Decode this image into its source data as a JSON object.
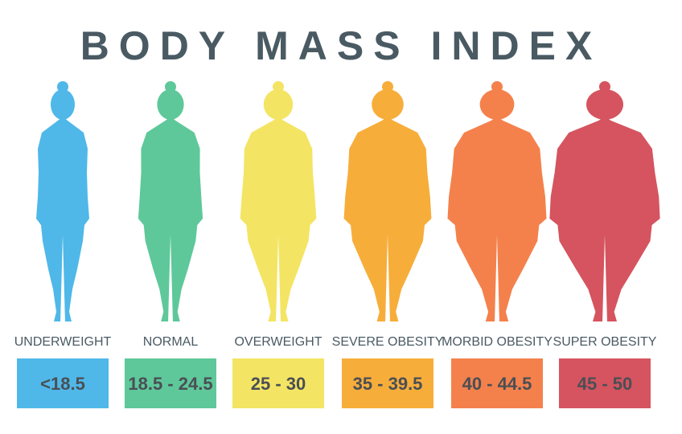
{
  "title": "BODY MASS INDEX",
  "categories": [
    {
      "label": "UNDERWEIGHT",
      "range": "<18.5"
    },
    {
      "label": "NORMAL",
      "range": "18.5 - 24.5"
    },
    {
      "label": "OVERWEIGHT",
      "range": "25 - 30"
    },
    {
      "label": "SEVERE OBESITY",
      "range": "35 - 39.5"
    },
    {
      "label": "MORBID OBESITY",
      "range": "40 - 44.5"
    },
    {
      "label": "SUPER OBESITY",
      "range": "45 - 50"
    }
  ]
}
